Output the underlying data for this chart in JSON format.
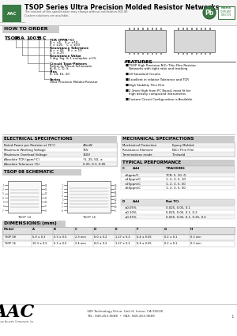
{
  "title": "TSOP Series Ultra Precision Molded Resistor Networks",
  "subtitle1": "The content of this specification may change without notification V01.06",
  "subtitle2": "Custom solutions are available.",
  "how_to_order_title": "HOW TO ORDER",
  "how_to_order_parts": [
    "TSOP",
    "08",
    "A",
    "1003",
    "B",
    "C"
  ],
  "how_to_order_labels": [
    [
      "TCR (PPM/°C)",
      "B = ±5    S = ±10",
      "E = ±25    C = ±50"
    ],
    [
      "Resistance Tolerance",
      "A = ±.05    B = ±.10",
      "C = ±.25"
    ],
    [
      "Resistance Value",
      "3 dig. Sig. & 1 multiplier ±1%"
    ],
    [
      "Circuit Type-Pattern",
      "Refers to Circuit Schematic:",
      "A, B, C, D, S"
    ],
    [
      "Pins",
      "8, 14, 16, 20"
    ],
    [
      "Series",
      "Ultra Precision Molded Resistor"
    ]
  ],
  "features_title": "FEATURES",
  "features": [
    "TSOP High Precision NiCr Thin Film Resistor\nNetworks with tight ratio and tracking",
    "10 Standard Circuits",
    "Excellent in relative Tolerance and TCR",
    "High Stability Thin Film",
    "2.3mm High from PC Board, most fit for\nhigh density compacted instruments",
    "Custom Circuit Configuration is Available"
  ],
  "electrical_title": "ELECTRICAL SPECIFACTIONS",
  "electrical_rows": [
    [
      "Rated Power per Resistor at 70°C",
      "40mW"
    ],
    [
      "Maximum Working Voltage",
      "75V"
    ],
    [
      "Maximum Overload Voltage",
      "150V"
    ],
    [
      "Absolute TCR (ppm/°C)",
      "°5, 25, 50, ±"
    ],
    [
      "Absolute Tolerance (%)",
      "0.25, 0.1, 0.05"
    ]
  ],
  "mechanical_title": "MECHANICAL SPECIFACTIONS",
  "mechanical_rows": [
    [
      "Mechanical Protection",
      "Epoxy Molded"
    ],
    [
      "Resistance Element",
      "NiCr Thin Film"
    ],
    [
      "Terminations mode",
      "Tin/weld"
    ]
  ],
  "typical_title": "TYPICAL PERFORMANCE",
  "typical_rows_tracking": [
    [
      "±5ppm/C",
      "TCR: 5, 10, ∅"
    ],
    [
      "±10ppm/C",
      "1, 2, 3, 5, 10"
    ],
    [
      "±25ppm/C",
      "1, 2, 3, 5, 50"
    ],
    [
      "±50ppm/C",
      "1, 2, 3, 5, 50"
    ]
  ],
  "typical_rows_ratio": [
    [
      "±0.05%",
      "0.025, 0.05, 0.1"
    ],
    [
      "±0.10%",
      "0.025, 0.05, 0.1, 0.2"
    ],
    [
      "±0.25%",
      "0.025, 0.05, 0.1, 0.25, 0.5"
    ]
  ],
  "schematic_title": "TSOP 08 SCHEMATIC",
  "dimensions_title": "DIMENSIONS (mm)",
  "dim_headers": [
    "Model",
    "A",
    "B",
    "C",
    "D",
    "E",
    "F",
    "G",
    "H"
  ],
  "dim_rows": [
    [
      "TSOP 08",
      "5.9 ± 0.3",
      "5.3 ± 0.5",
      "2.3 mm",
      "6.0 ± 0.2",
      "1.27 ± 0.2",
      "0.4 ± 0.05",
      "0.2 ± 0.1",
      "0.3 min"
    ],
    [
      "TSOP 16",
      "10.3 ± 0.5",
      "5.3 ± 0.5",
      "2.4 mm",
      "8.0 ± 0.2",
      "1.27 ± 0.2",
      "0.4 ± 0.05",
      "0.2 ± 0.1",
      "0.3 min"
    ]
  ],
  "footer_addr": "189 Technology Drive, Unit H, Irvine, CA 92618",
  "footer_tel": "TEL: 949-453-9688  •  FAX: 949-453-9689",
  "page_num": "1"
}
